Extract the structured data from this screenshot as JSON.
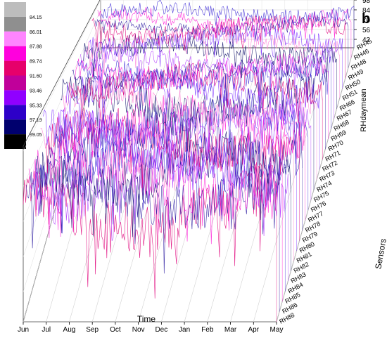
{
  "chart_data": {
    "type": "line",
    "panel_label": "b",
    "xlabel": "Time",
    "ylabel": "RHdaymean",
    "zlabel": "Sensors",
    "x_ticks": [
      "Jun",
      "Jul",
      "Aug",
      "Sep",
      "Oct",
      "Nov",
      "Dec",
      "Jan",
      "Feb",
      "Mar",
      "Apr",
      "May"
    ],
    "y_ticks": [
      42,
      56,
      70,
      84,
      98
    ],
    "ylim": [
      30,
      100
    ],
    "sensors": [
      "RH45",
      "RH46",
      "RH48",
      "RH49",
      "RH50",
      "RH51",
      "RH66",
      "RH67",
      "RH68",
      "RH69",
      "RH70",
      "RH71",
      "RH72",
      "RH73",
      "RH74",
      "RH75",
      "RH76",
      "RH77",
      "RH78",
      "RH79",
      "RH80",
      "RH81",
      "RH82",
      "RH83",
      "RH84",
      "RH85",
      "RH86",
      "RH88"
    ],
    "color_scale": {
      "levels": [
        "84.15",
        "86.01",
        "87.88",
        "89.74",
        "91.60",
        "93.46",
        "95.33",
        "97.19",
        "99.05"
      ],
      "colors": [
        "#bdbdbd",
        "#8f8f8f",
        "#ff85ff",
        "#ff00dd",
        "#e6006b",
        "#c0009a",
        "#9000ff",
        "#2d00c8",
        "#00006e",
        "#000000"
      ]
    },
    "grid": true,
    "legend": "top-left"
  }
}
